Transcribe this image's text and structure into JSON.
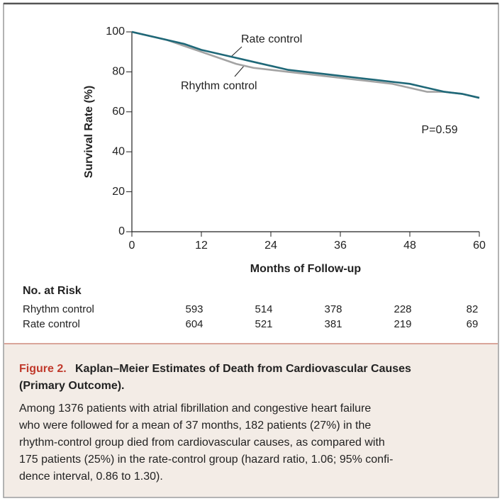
{
  "chart_data": {
    "type": "line",
    "x_label": "Months of Follow-up",
    "y_label": "Survival Rate (%)",
    "x": [
      0,
      3,
      6,
      9,
      12,
      15,
      18,
      21,
      24,
      27,
      30,
      33,
      36,
      39,
      42,
      45,
      48,
      51,
      54,
      57,
      60
    ],
    "series": [
      {
        "name": "Rate control",
        "color": "#1f6878",
        "values": [
          100,
          98,
          96,
          94,
          91,
          89,
          87,
          85,
          83,
          81,
          80,
          79,
          78,
          77,
          76,
          75,
          74,
          72,
          70,
          69,
          67
        ]
      },
      {
        "name": "Rhythm control",
        "color": "#a3a3a3",
        "values": [
          100,
          98,
          96,
          93,
          90,
          87,
          84,
          82,
          81,
          80,
          79,
          78,
          77,
          76,
          75,
          74,
          72,
          70,
          70,
          69,
          67
        ]
      }
    ],
    "xlim": [
      0,
      60
    ],
    "xticks": [
      0,
      12,
      24,
      36,
      48,
      60
    ],
    "ylim": [
      0,
      100
    ],
    "yticks": [
      0,
      20,
      40,
      60,
      80,
      100
    ],
    "annotation": "P=0.59",
    "risk_table": {
      "title": "No. at Risk",
      "rows": [
        {
          "name": "Rhythm control",
          "values": [
            593,
            514,
            378,
            228,
            82
          ]
        },
        {
          "name": "Rate control",
          "values": [
            604,
            521,
            381,
            219,
            69
          ]
        }
      ]
    }
  },
  "caption": {
    "label": "Figure 2.",
    "title_lines": [
      "Kaplan–Meier Estimates of Death from Cardiovascular Causes",
      "(Primary Outcome)."
    ],
    "lines": [
      "Among 1376 patients with atrial fibrillation and congestive heart failure",
      "who were followed for a mean of 37 months, 182 patients (27%) in the",
      "rhythm-control group died from cardiovascular causes, as compared with",
      "175 patients (25%) in the rate-control group (hazard ratio, 1.06; 95% confi-",
      "dence interval, 0.86 to 1.30)."
    ]
  }
}
